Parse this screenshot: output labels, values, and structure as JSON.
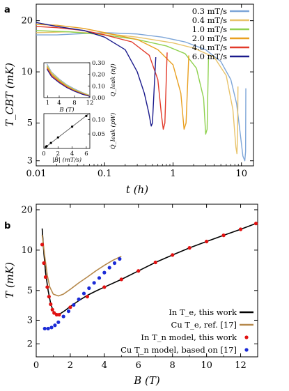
{
  "colors": {
    "s03": "#7ea6d8",
    "s04": "#e8c36a",
    "s10": "#8fd14f",
    "s20": "#e9a020",
    "s40": "#e23a2a",
    "s60": "#1a1a8c",
    "in_te": "#000000",
    "cu_te": "#b5884b",
    "in_tn": "#e11111",
    "cu_tn": "#1b2bd6"
  },
  "chart_data": [
    {
      "id": "a",
      "panel_label": "a",
      "type": "line",
      "xscale": "log",
      "yscale": "log",
      "xlabel": "t (h)",
      "ylabel": "T_CBT (mK)",
      "xlim": [
        0.01,
        15
      ],
      "ylim": [
        2.8,
        25
      ],
      "xticks": [
        {
          "value": 0.01,
          "label": "0.01"
        },
        {
          "value": 0.1,
          "label": "0.1"
        },
        {
          "value": 1,
          "label": "1"
        },
        {
          "value": 10,
          "label": "10"
        }
      ],
      "yticks": [
        {
          "value": 3,
          "label": "3"
        },
        {
          "value": 5,
          "label": "5"
        },
        {
          "value": 10,
          "label": "10"
        },
        {
          "value": 20,
          "label": "20"
        }
      ],
      "legend": "top-right",
      "series": [
        {
          "name": "0.3 mT/s",
          "color_key": "s03",
          "points": [
            [
              0.01,
              16.5
            ],
            [
              0.02,
              16.5
            ],
            [
              0.05,
              16.8
            ],
            [
              0.1,
              17.0
            ],
            [
              0.3,
              16.7
            ],
            [
              0.7,
              16.0
            ],
            [
              1.5,
              15.0
            ],
            [
              3,
              13.5
            ],
            [
              5,
              11.5
            ],
            [
              7,
              9.0
            ],
            [
              8.5,
              6.5
            ],
            [
              9.5,
              4.5
            ],
            [
              10.5,
              3.2
            ],
            [
              11.2,
              3.0
            ],
            [
              11.5,
              3.4
            ],
            [
              11.6,
              8.0
            ]
          ]
        },
        {
          "name": "0.4 mT/s",
          "color_key": "s04",
          "points": [
            [
              0.01,
              17.0
            ],
            [
              0.03,
              17.2
            ],
            [
              0.1,
              16.8
            ],
            [
              0.3,
              16.0
            ],
            [
              1,
              14.8
            ],
            [
              2,
              13.8
            ],
            [
              4,
              12.2
            ],
            [
              6,
              9.5
            ],
            [
              7.5,
              6.0
            ],
            [
              8.3,
              3.6
            ],
            [
              8.6,
              3.3
            ],
            [
              8.8,
              4.5
            ],
            [
              8.9,
              8.2
            ]
          ]
        },
        {
          "name": "1.0 mT/s",
          "color_key": "s10",
          "points": [
            [
              0.01,
              17.5
            ],
            [
              0.03,
              17.2
            ],
            [
              0.1,
              16.5
            ],
            [
              0.3,
              15.5
            ],
            [
              0.8,
              14.2
            ],
            [
              1.5,
              12.8
            ],
            [
              2.2,
              10.5
            ],
            [
              2.8,
              7.0
            ],
            [
              3.0,
              4.3
            ],
            [
              3.15,
              4.6
            ],
            [
              3.3,
              12.2
            ]
          ]
        },
        {
          "name": "2.0 mT/s",
          "color_key": "s20",
          "points": [
            [
              0.01,
              19.0
            ],
            [
              0.02,
              18.8
            ],
            [
              0.05,
              18.0
            ],
            [
              0.1,
              17.0
            ],
            [
              0.3,
              15.5
            ],
            [
              0.6,
              13.5
            ],
            [
              1.0,
              11.0
            ],
            [
              1.3,
              7.5
            ],
            [
              1.45,
              4.6
            ],
            [
              1.55,
              5.0
            ],
            [
              1.7,
              12.5
            ]
          ]
        },
        {
          "name": "4.0 mT/s",
          "color_key": "s40",
          "points": [
            [
              0.01,
              18.5
            ],
            [
              0.02,
              18.2
            ],
            [
              0.05,
              17.5
            ],
            [
              0.1,
              16.5
            ],
            [
              0.25,
              15.0
            ],
            [
              0.45,
              12.5
            ],
            [
              0.6,
              9.0
            ],
            [
              0.68,
              5.5
            ],
            [
              0.72,
              4.6
            ],
            [
              0.76,
              5.0
            ],
            [
              0.82,
              13.0
            ]
          ]
        },
        {
          "name": "6.0 mT/s",
          "color_key": "s60",
          "points": [
            [
              0.01,
              19.5
            ],
            [
              0.02,
              18.5
            ],
            [
              0.05,
              17.5
            ],
            [
              0.1,
              16.0
            ],
            [
              0.2,
              13.5
            ],
            [
              0.3,
              10.0
            ],
            [
              0.38,
              7.5
            ],
            [
              0.44,
              5.8
            ],
            [
              0.48,
              4.8
            ],
            [
              0.5,
              5.0
            ],
            [
              0.53,
              8.0
            ],
            [
              0.56,
              12.2
            ]
          ]
        }
      ]
    },
    {
      "id": "a_inset1",
      "type": "line",
      "xlabel": "B (T)",
      "ylabel": "Q_leak (nJ)",
      "xlim": [
        0,
        12
      ],
      "ylim": [
        0,
        0.3
      ],
      "xticks": [
        1,
        4,
        8,
        12
      ],
      "yticks": [
        {
          "value": 0.0,
          "label": "0.00"
        },
        {
          "value": 0.1,
          "label": "0.10"
        },
        {
          "value": 0.2,
          "label": "0.20"
        },
        {
          "value": 0.3,
          "label": "0.30"
        }
      ],
      "series": [
        {
          "color_key": "s03",
          "points": [
            [
              0.8,
              0.29
            ],
            [
              2,
              0.22
            ],
            [
              4,
              0.16
            ],
            [
              6,
              0.11
            ],
            [
              8,
              0.075
            ],
            [
              10,
              0.045
            ],
            [
              12,
              0.02
            ]
          ]
        },
        {
          "color_key": "s04",
          "points": [
            [
              0.8,
              0.28
            ],
            [
              2,
              0.215
            ],
            [
              4,
              0.155
            ],
            [
              6,
              0.105
            ],
            [
              8,
              0.07
            ],
            [
              10,
              0.042
            ],
            [
              12,
              0.018
            ]
          ]
        },
        {
          "color_key": "s10",
          "points": [
            [
              0.8,
              0.27
            ],
            [
              2,
              0.205
            ],
            [
              4,
              0.148
            ],
            [
              6,
              0.1
            ],
            [
              8,
              0.066
            ],
            [
              10,
              0.038
            ],
            [
              12,
              0.015
            ]
          ]
        },
        {
          "color_key": "s20",
          "points": [
            [
              0.8,
              0.265
            ],
            [
              2,
              0.2
            ],
            [
              4,
              0.142
            ],
            [
              6,
              0.096
            ],
            [
              8,
              0.062
            ],
            [
              10,
              0.035
            ],
            [
              12,
              0.013
            ]
          ]
        },
        {
          "color_key": "s40",
          "points": [
            [
              0.8,
              0.255
            ],
            [
              2,
              0.19
            ],
            [
              4,
              0.135
            ],
            [
              6,
              0.09
            ],
            [
              8,
              0.058
            ],
            [
              10,
              0.032
            ],
            [
              12,
              0.011
            ]
          ]
        },
        {
          "color_key": "s60",
          "points": [
            [
              0.8,
              0.245
            ],
            [
              2,
              0.18
            ],
            [
              4,
              0.128
            ],
            [
              6,
              0.085
            ],
            [
              8,
              0.054
            ],
            [
              10,
              0.029
            ],
            [
              12,
              0.01
            ]
          ]
        }
      ]
    },
    {
      "id": "a_inset2",
      "type": "scatter",
      "xlabel": "|Ḃ| (mT/s)",
      "ylabel": "Q̇_leak (pW)",
      "xlim": [
        0,
        6.5
      ],
      "ylim": [
        0,
        0.12
      ],
      "xticks": [
        0,
        2,
        4,
        6
      ],
      "yticks": [
        {
          "value": 0.05,
          "label": "0.05"
        },
        {
          "value": 0.1,
          "label": "0.10"
        }
      ],
      "fit_line": [
        [
          0,
          0
        ],
        [
          6.5,
          0.122
        ]
      ],
      "points": [
        [
          0.3,
          0.006
        ],
        [
          0.4,
          0.008
        ],
        [
          1.0,
          0.019
        ],
        [
          2.0,
          0.038
        ],
        [
          4.0,
          0.075
        ],
        [
          6.0,
          0.112
        ]
      ]
    },
    {
      "id": "b",
      "panel_label": "b",
      "type": "line",
      "xscale": "linear",
      "yscale": "log",
      "xlabel": "B (T)",
      "ylabel": "T (mK)",
      "xlim": [
        0,
        13
      ],
      "ylim": [
        1.6,
        22
      ],
      "xticks": [
        0,
        2,
        4,
        6,
        8,
        10,
        12
      ],
      "yticks": [
        {
          "value": 2,
          "label": "2"
        },
        {
          "value": 3,
          "label": "3"
        },
        {
          "value": 5,
          "label": "5"
        },
        {
          "value": 10,
          "label": "10"
        },
        {
          "value": 20,
          "label": "20"
        }
      ],
      "legend": "bottom-right",
      "series": [
        {
          "name": "In T_e, this work",
          "color_key": "in_te",
          "kind": "line",
          "points": [
            [
              0.35,
              14.5
            ],
            [
              0.45,
              9.5
            ],
            [
              0.55,
              6.8
            ],
            [
              0.7,
              5.0
            ],
            [
              0.85,
              4.0
            ],
            [
              1.0,
              3.5
            ],
            [
              1.2,
              3.3
            ],
            [
              1.4,
              3.35
            ],
            [
              1.7,
              3.55
            ],
            [
              2.0,
              3.8
            ],
            [
              2.5,
              4.2
            ],
            [
              3.0,
              4.6
            ],
            [
              3.5,
              4.95
            ],
            [
              4.0,
              5.3
            ],
            [
              5.0,
              6.05
            ],
            [
              6.0,
              7.0
            ],
            [
              7.0,
              8.1
            ],
            [
              8.0,
              9.2
            ],
            [
              9.0,
              10.4
            ],
            [
              10.0,
              11.6
            ],
            [
              11.0,
              12.9
            ],
            [
              12.0,
              14.3
            ],
            [
              12.9,
              15.8
            ]
          ]
        },
        {
          "name": "Cu T_e, ref. [17]",
          "color_key": "cu_te",
          "kind": "line",
          "points": [
            [
              0.35,
              13.0
            ],
            [
              0.5,
              9.0
            ],
            [
              0.65,
              6.5
            ],
            [
              0.8,
              5.3
            ],
            [
              1.0,
              4.7
            ],
            [
              1.3,
              4.55
            ],
            [
              1.6,
              4.7
            ],
            [
              2.0,
              5.1
            ],
            [
              2.5,
              5.7
            ],
            [
              3.0,
              6.3
            ],
            [
              3.5,
              7.0
            ],
            [
              4.0,
              7.7
            ],
            [
              4.5,
              8.4
            ],
            [
              5.0,
              9.0
            ]
          ]
        },
        {
          "name": "In T_n model, this work",
          "color_key": "in_tn",
          "kind": "dots",
          "points": [
            [
              0.35,
              11.0
            ],
            [
              0.45,
              8.0
            ],
            [
              0.55,
              6.3
            ],
            [
              0.65,
              5.3
            ],
            [
              0.75,
              4.5
            ],
            [
              0.85,
              3.95
            ],
            [
              0.95,
              3.6
            ],
            [
              1.05,
              3.4
            ],
            [
              1.2,
              3.3
            ],
            [
              1.35,
              3.3
            ],
            [
              2.0,
              3.75
            ],
            [
              3.0,
              4.5
            ],
            [
              4.0,
              5.3
            ],
            [
              5.0,
              6.05
            ],
            [
              6.0,
              7.0
            ],
            [
              7.0,
              8.1
            ],
            [
              8.0,
              9.2
            ],
            [
              9.0,
              10.4
            ],
            [
              10.0,
              11.6
            ],
            [
              11.0,
              12.9
            ],
            [
              12.0,
              14.3
            ],
            [
              12.9,
              15.8
            ]
          ]
        },
        {
          "name": "Cu T_n model, based on [17]",
          "color_key": "cu_tn",
          "kind": "dots",
          "points": [
            [
              0.5,
              2.6
            ],
            [
              0.7,
              2.6
            ],
            [
              0.9,
              2.65
            ],
            [
              1.1,
              2.75
            ],
            [
              1.3,
              2.9
            ],
            [
              1.6,
              3.2
            ],
            [
              1.9,
              3.5
            ],
            [
              2.2,
              3.9
            ],
            [
              2.5,
              4.3
            ],
            [
              2.8,
              4.75
            ],
            [
              3.1,
              5.2
            ],
            [
              3.4,
              5.7
            ],
            [
              3.7,
              6.2
            ],
            [
              4.0,
              6.8
            ],
            [
              4.3,
              7.4
            ],
            [
              4.6,
              8.0
            ],
            [
              4.9,
              8.6
            ]
          ]
        }
      ]
    }
  ]
}
